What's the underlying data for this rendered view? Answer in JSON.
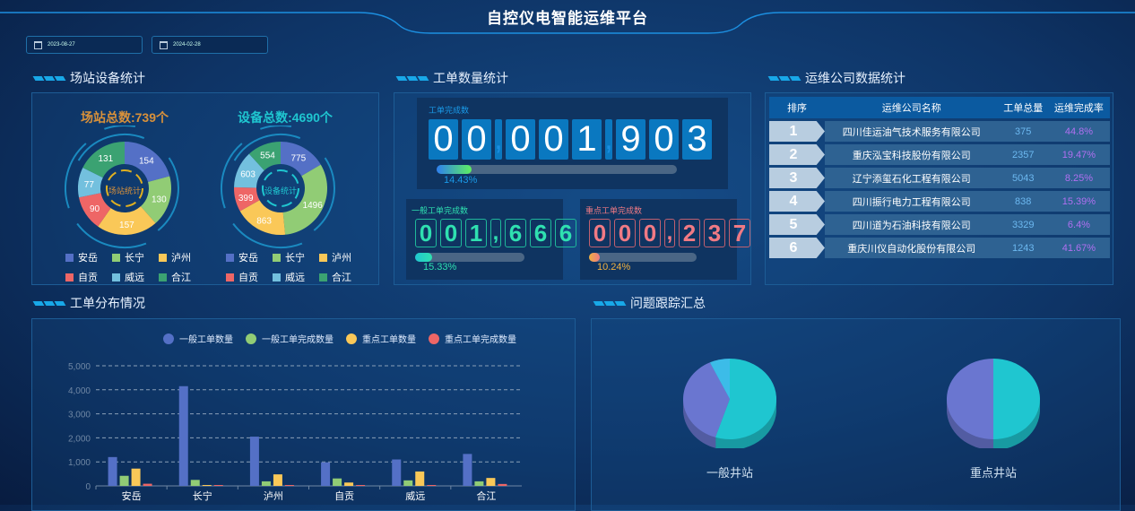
{
  "header": {
    "title": "自控仪电智能运维平台"
  },
  "filters": {
    "start_date": "2023-08-27",
    "end_date": "2024-02-28",
    "icon": "calendar-icon"
  },
  "colors": {
    "anyue": "#5470c6",
    "changning": "#91cc75",
    "luzhou": "#fac858",
    "zigong": "#ee6666",
    "weiyuan": "#73c0de",
    "hejiang": "#3ba272"
  },
  "station_stats": {
    "section_title": "场站设备统计",
    "legend": [
      "安岳",
      "长宁",
      "泸州",
      "自贡",
      "威远",
      "合江"
    ],
    "station_chart": {
      "title": "场站总数:739个",
      "center_label": "场站统计",
      "values": [
        154,
        130,
        157,
        90,
        77,
        131
      ]
    },
    "device_chart": {
      "title": "设备总数:4690个",
      "center_label": "设备统计",
      "values": [
        775,
        1496,
        863,
        399,
        603,
        554
      ]
    }
  },
  "work_orders": {
    "section_title": "工单数量统计",
    "total": {
      "label": "工单完成数",
      "value": "00,001,903",
      "progress_percent": 14.43,
      "progress_text": "14.43%"
    },
    "general": {
      "label": "一般工单完成数",
      "value": "001,666",
      "progress_percent": 15.33,
      "progress_text": "15.33%"
    },
    "key": {
      "label": "重点工单完成数",
      "value": "000,237",
      "progress_percent": 10.24,
      "progress_text": "10.24%"
    }
  },
  "companies": {
    "section_title": "运维公司数据统计",
    "columns": [
      "排序",
      "运维公司名称",
      "工单总量",
      "运维完成率"
    ],
    "rows": [
      {
        "rank": "1",
        "name": "四川佳运油气技术服务有限公司",
        "total": "375",
        "rate": "44.8%"
      },
      {
        "rank": "2",
        "name": "重庆泓宝科技股份有限公司",
        "total": "2357",
        "rate": "19.47%"
      },
      {
        "rank": "3",
        "name": "辽宁添玺石化工程有限公司",
        "total": "5043",
        "rate": "8.25%"
      },
      {
        "rank": "4",
        "name": "四川振行电力工程有限公司",
        "total": "838",
        "rate": "15.39%"
      },
      {
        "rank": "5",
        "name": "四川道为石油科技有限公司",
        "total": "3329",
        "rate": "6.4%"
      },
      {
        "rank": "6",
        "name": "重庆川仪自动化股份有限公司",
        "total": "1243",
        "rate": "41.67%"
      }
    ]
  },
  "distribution": {
    "section_title": "工单分布情况"
  },
  "issues": {
    "section_title": "问题跟踪汇总"
  },
  "chart_data": [
    {
      "type": "bar",
      "title": "",
      "xlabel": "",
      "ylabel": "",
      "grid": true,
      "legend_position": "top",
      "categories": [
        "安岳",
        "长宁",
        "泸州",
        "自贡",
        "威远",
        "合江"
      ],
      "ylim": [
        0,
        5000
      ],
      "yticks": [
        "0",
        "1,000",
        "2,000",
        "3,000",
        "4,000",
        "5,000"
      ],
      "series": [
        {
          "name": "一般工单数量",
          "color": "#5470c6",
          "values": [
            1200,
            4150,
            2050,
            980,
            1100,
            1330
          ]
        },
        {
          "name": "一般工单完成数量",
          "color": "#91cc75",
          "values": [
            420,
            250,
            190,
            310,
            230,
            190
          ]
        },
        {
          "name": "重点工单数量",
          "color": "#fac858",
          "values": [
            720,
            0,
            480,
            140,
            600,
            330
          ]
        },
        {
          "name": "重点工单完成数量",
          "color": "#ee6666",
          "values": [
            90,
            0,
            10,
            10,
            10,
            80
          ]
        }
      ]
    },
    {
      "type": "pie",
      "title": "一般井站",
      "values": [
        55,
        38,
        7
      ],
      "colors": [
        "#1fc6d0",
        "#6a76d0",
        "#3cbce8"
      ]
    },
    {
      "type": "pie",
      "title": "重点井站",
      "values": [
        50,
        50
      ],
      "colors": [
        "#1fc6d0",
        "#6a76d0"
      ]
    }
  ]
}
